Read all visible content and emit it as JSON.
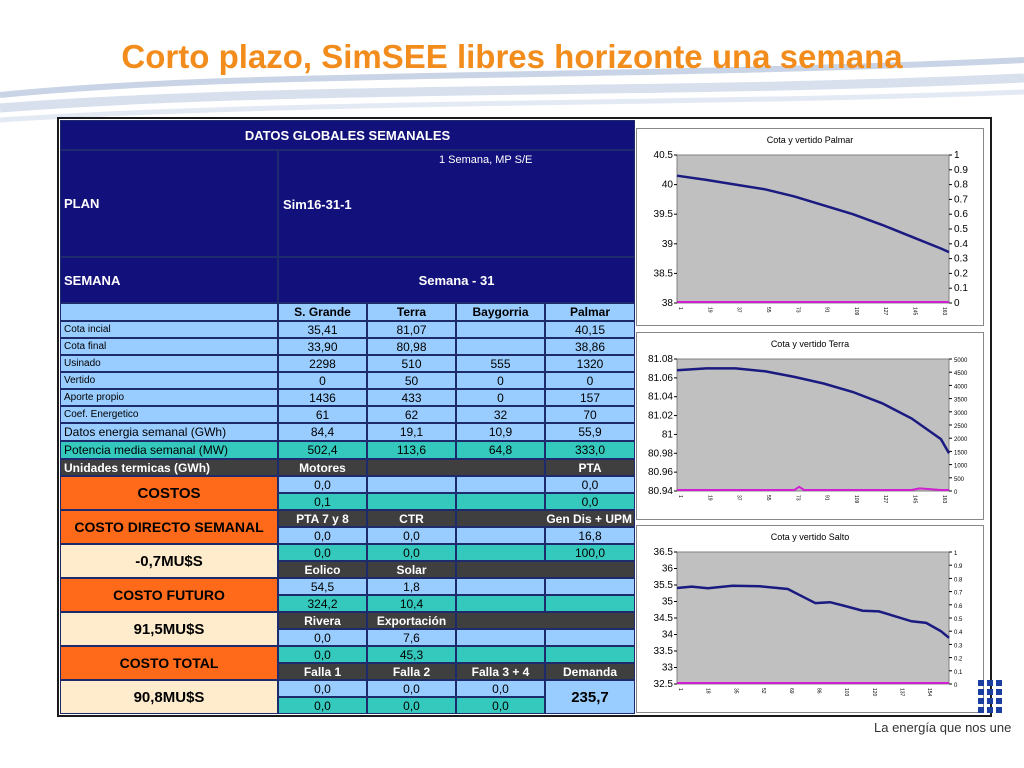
{
  "slide": {
    "title": "Corto plazo, SimSEE libres horizonte una semana",
    "tagline": "La energía que nos une",
    "accent_color": "#f28c1c"
  },
  "table": {
    "header": "DATOS GLOBALES SEMANALES",
    "plan_label": "PLAN",
    "plan_subtitle": "1 Semana, MP S/E",
    "plan_value": "Sim16-31-1",
    "semana_label": "SEMANA",
    "semana_value": "Semana - 31",
    "columns": [
      "S. Grande",
      "Terra",
      "Baygorria",
      "Palmar"
    ],
    "rows": [
      {
        "label": "Cota incial",
        "values": [
          "35,41",
          "81,07",
          "",
          "40,15"
        ]
      },
      {
        "label": "Cota final",
        "values": [
          "33,90",
          "80,98",
          "",
          "38,86"
        ]
      },
      {
        "label": "Usinado",
        "values": [
          "2298",
          "510",
          "555",
          "1320"
        ]
      },
      {
        "label": "Vertido",
        "values": [
          "0",
          "50",
          "0",
          "0"
        ]
      },
      {
        "label": "Aporte propio",
        "values": [
          "1436",
          "433",
          "0",
          "157"
        ]
      },
      {
        "label": "Coef. Energetico",
        "values": [
          "61",
          "62",
          "32",
          "70"
        ]
      },
      {
        "label": "Datos energia semanal  (GWh)",
        "values": [
          "84,4",
          "19,1",
          "10,9",
          "55,9"
        ]
      },
      {
        "label": "Potencia media semanal (MW)",
        "values": [
          "502,4",
          "113,6",
          "64,8",
          "333,0"
        ]
      }
    ],
    "termicas": {
      "label": "Unidades termicas (GWh)",
      "motores": "Motores",
      "pta": "PTA",
      "motores_values": [
        "0,0",
        "0,1"
      ],
      "pta_values": [
        "0,0",
        "0,0"
      ]
    },
    "costos_label": "COSTOS",
    "costo_directo_label": "COSTO DIRECTO SEMANAL",
    "costo_directo_value": "-0,7MU$S",
    "costo_futuro_label": "COSTO FUTURO",
    "costo_futuro_value": "91,5MU$S",
    "costo_total_label": "COSTO TOTAL",
    "costo_total_value": "90,8MU$S",
    "pta78": {
      "label": "PTA 7 y 8",
      "values": [
        "0,0",
        "0,0"
      ]
    },
    "ctr": {
      "label": "CTR",
      "values": [
        "0,0",
        "0,0"
      ]
    },
    "gendis": {
      "label": "Gen Dis + UPM",
      "values": [
        "16,8",
        "100,0"
      ]
    },
    "eolico": {
      "label": "Eolico",
      "values": [
        "54,5",
        "324,2"
      ]
    },
    "solar": {
      "label": "Solar",
      "values": [
        "1,8",
        "10,4"
      ]
    },
    "rivera": {
      "label": "Rivera",
      "values": [
        "0,0",
        "0,0"
      ]
    },
    "exportacion": {
      "label": "Exportación",
      "values": [
        "7,6",
        "45,3"
      ]
    },
    "falla1": {
      "label": "Falla 1",
      "values": [
        "0,0",
        "0,0"
      ]
    },
    "falla2": {
      "label": "Falla 2",
      "values": [
        "0,0",
        "0,0"
      ]
    },
    "falla34": {
      "label": "Falla 3 + 4",
      "values": [
        "0,0",
        "0,0"
      ]
    },
    "demanda": {
      "label": "Demanda",
      "value": "235,7"
    }
  },
  "chart_data": [
    {
      "type": "line",
      "title": "Cota y vertido Palmar",
      "x_ticks": [
        "1",
        "19",
        "37",
        "55",
        "73",
        "91",
        "109",
        "127",
        "145",
        "163"
      ],
      "ylim": [
        38,
        40.5
      ],
      "y_ticks": [
        "40.5",
        "40",
        "39.5",
        "39",
        "38.5",
        "38"
      ],
      "y2lim": [
        0,
        1
      ],
      "y2_ticks": [
        "1",
        "0.9",
        "0.8",
        "0.7",
        "0.6",
        "0.5",
        "0.4",
        "0.3",
        "0.2",
        "0.1",
        "0"
      ],
      "xmax": 168,
      "series": [
        {
          "color": "#1a1a80",
          "axis": "left",
          "x": [
            1,
            19,
            37,
            55,
            73,
            91,
            109,
            127,
            145,
            163,
            168
          ],
          "y": [
            40.15,
            40.08,
            40.0,
            39.92,
            39.8,
            39.65,
            39.5,
            39.32,
            39.12,
            38.92,
            38.86
          ]
        },
        {
          "color": "#d020d0",
          "axis": "right",
          "x": [
            1,
            168
          ],
          "y": [
            0,
            0
          ]
        }
      ]
    },
    {
      "type": "line",
      "title": "Cota y vertido Terra",
      "x_ticks": [
        "1",
        "19",
        "37",
        "55",
        "73",
        "91",
        "109",
        "127",
        "145",
        "163"
      ],
      "ylim": [
        80.94,
        81.08
      ],
      "y_ticks": [
        "81.08",
        "81.06",
        "81.04",
        "81.02",
        "81",
        "80.98",
        "80.96",
        "80.94"
      ],
      "y2lim": [
        0,
        5000
      ],
      "y2_ticks": [
        "5000",
        "4500",
        "4000",
        "3500",
        "3000",
        "2500",
        "2000",
        "1500",
        "1000",
        "500",
        "0"
      ],
      "xmax": 168,
      "series": [
        {
          "color": "#1a1a80",
          "axis": "left",
          "x": [
            1,
            19,
            37,
            55,
            73,
            91,
            109,
            127,
            145,
            163,
            168
          ],
          "y": [
            81.068,
            81.07,
            81.07,
            81.067,
            81.061,
            81.054,
            81.045,
            81.033,
            81.017,
            80.995,
            80.98
          ]
        },
        {
          "color": "#d020d0",
          "axis": "right",
          "x": [
            1,
            73,
            76,
            79,
            145,
            150,
            163,
            168
          ],
          "y": [
            0,
            0,
            120,
            0,
            0,
            60,
            0,
            0
          ]
        }
      ]
    },
    {
      "type": "line",
      "title": "Cota y vertido Salto",
      "x_ticks": [
        "1",
        "18",
        "35",
        "52",
        "69",
        "86",
        "103",
        "120",
        "137",
        "154"
      ],
      "ylim": [
        32.5,
        36.5
      ],
      "y_ticks": [
        "36.5",
        "36",
        "35.5",
        "35",
        "34.5",
        "34",
        "33.5",
        "33",
        "32.5"
      ],
      "y2lim": [
        0,
        1
      ],
      "y2_ticks": [
        "1",
        "0.9",
        "0.8",
        "0.7",
        "0.6",
        "0.5",
        "0.4",
        "0.3",
        "0.2",
        "0.1",
        "0"
      ],
      "xmax": 168,
      "series": [
        {
          "color": "#1a1a80",
          "axis": "left",
          "x": [
            1,
            10,
            20,
            35,
            52,
            69,
            80,
            86,
            95,
            103,
            115,
            125,
            137,
            145,
            154,
            163,
            168
          ],
          "y": [
            35.41,
            35.45,
            35.4,
            35.48,
            35.46,
            35.38,
            35.1,
            34.95,
            34.98,
            34.88,
            34.72,
            34.7,
            34.52,
            34.4,
            34.35,
            34.1,
            33.9
          ]
        },
        {
          "color": "#d020d0",
          "axis": "right",
          "x": [
            1,
            168
          ],
          "y": [
            0,
            0
          ]
        }
      ]
    }
  ]
}
